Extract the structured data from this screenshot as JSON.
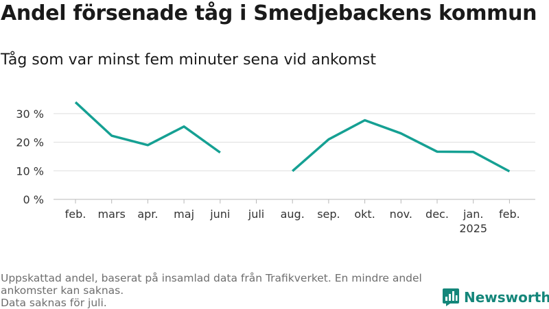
{
  "header": {
    "title": "Andel försenade tåg i Smedjebackens kommun",
    "subtitle": "Tåg som var minst fem minuter sena vid ankomst"
  },
  "footer": {
    "notes": [
      "Uppskattad andel, baserat på insamlad data från Trafikverket. En mindre andel ankomster kan saknas.",
      "Data saknas för juli."
    ],
    "brand": "Newsworthy"
  },
  "colors": {
    "line": "#15a093",
    "grid": "#dddddd",
    "brand": "#14867a"
  },
  "chart_data": {
    "type": "line",
    "categories": [
      "feb.",
      "mars",
      "apr.",
      "maj",
      "juni",
      "juli",
      "aug.",
      "sep.",
      "okt.",
      "nov.",
      "dec.",
      "jan.",
      "feb."
    ],
    "category_sublabels": [
      "",
      "",
      "",
      "",
      "",
      "",
      "",
      "",
      "",
      "",
      "",
      "2025",
      ""
    ],
    "series": [
      {
        "values": [
          34,
          22.3,
          19,
          25.5,
          16.4,
          null,
          9.9,
          21,
          27.7,
          23.1,
          16.7,
          16.6,
          9.8
        ]
      }
    ],
    "yticks": [
      0,
      10,
      20,
      30
    ],
    "ytick_labels": [
      "0 %",
      "10 %",
      "20 %",
      "30 %"
    ],
    "ylim": [
      0,
      37
    ],
    "grid": true,
    "legend": "none"
  }
}
